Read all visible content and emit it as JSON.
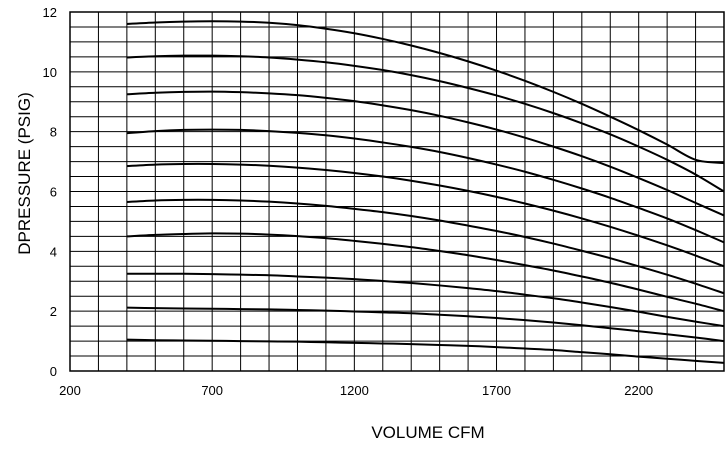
{
  "chart_data": {
    "type": "line",
    "title": "",
    "xlabel": "VOLUME CFM",
    "ylabel": "DPRESSURE (PSIG)",
    "xlim": [
      200,
      2500
    ],
    "ylim": [
      0,
      12
    ],
    "x_ticks": [
      200,
      700,
      1200,
      1700,
      2200
    ],
    "y_ticks": [
      0,
      2,
      4,
      6,
      8,
      10,
      12
    ],
    "x_tick_labels": [
      "200",
      "700",
      "1200",
      "1700",
      "2200"
    ],
    "y_tick_labels": [
      "0",
      "2",
      "4",
      "6",
      "8",
      "10",
      "12"
    ],
    "grid": true,
    "legend": "none",
    "line_color": "#000000",
    "series": [
      {
        "x": [
          400,
          500,
          600,
          700,
          800,
          900,
          1000,
          1100,
          1200,
          1300,
          1400,
          1500,
          1600,
          1700,
          1800,
          1900,
          2000,
          2100,
          2200,
          2300,
          2400,
          2500
        ],
        "values": [
          1.05,
          1.03,
          1.02,
          1.01,
          1.0,
          0.99,
          0.98,
          0.96,
          0.94,
          0.92,
          0.9,
          0.87,
          0.84,
          0.8,
          0.75,
          0.7,
          0.63,
          0.56,
          0.48,
          0.41,
          0.34,
          0.27
        ]
      },
      {
        "x": [
          400,
          500,
          600,
          700,
          800,
          900,
          1000,
          1100,
          1200,
          1300,
          1400,
          1500,
          1600,
          1700,
          1800,
          1900,
          2000,
          2100,
          2200,
          2300,
          2400,
          2500
        ],
        "values": [
          2.12,
          2.1,
          2.09,
          2.08,
          2.07,
          2.06,
          2.04,
          2.02,
          1.99,
          1.96,
          1.93,
          1.88,
          1.83,
          1.77,
          1.7,
          1.62,
          1.53,
          1.43,
          1.33,
          1.23,
          1.12,
          1.0
        ]
      },
      {
        "x": [
          400,
          500,
          600,
          700,
          800,
          900,
          1000,
          1100,
          1200,
          1300,
          1400,
          1500,
          1600,
          1700,
          1800,
          1900,
          2000,
          2100,
          2200,
          2300,
          2400,
          2500
        ],
        "values": [
          3.25,
          3.25,
          3.25,
          3.24,
          3.22,
          3.2,
          3.16,
          3.12,
          3.07,
          3.01,
          2.94,
          2.86,
          2.77,
          2.67,
          2.55,
          2.43,
          2.29,
          2.14,
          1.98,
          1.81,
          1.65,
          1.5
        ]
      },
      {
        "x": [
          400,
          500,
          600,
          700,
          800,
          900,
          1000,
          1100,
          1200,
          1300,
          1400,
          1500,
          1600,
          1700,
          1800,
          1900,
          2000,
          2100,
          2200,
          2300,
          2400,
          2500
        ],
        "values": [
          4.5,
          4.55,
          4.58,
          4.6,
          4.59,
          4.56,
          4.51,
          4.44,
          4.35,
          4.25,
          4.14,
          4.01,
          3.87,
          3.71,
          3.54,
          3.36,
          3.16,
          2.95,
          2.72,
          2.48,
          2.25,
          2.0
        ]
      },
      {
        "x": [
          400,
          500,
          600,
          700,
          800,
          900,
          1000,
          1100,
          1200,
          1300,
          1400,
          1500,
          1600,
          1700,
          1800,
          1900,
          2000,
          2100,
          2200,
          2300,
          2400,
          2500
        ],
        "values": [
          5.65,
          5.7,
          5.72,
          5.72,
          5.7,
          5.66,
          5.6,
          5.52,
          5.42,
          5.31,
          5.18,
          5.03,
          4.86,
          4.68,
          4.48,
          4.26,
          4.02,
          3.77,
          3.5,
          3.22,
          2.92,
          2.6
        ]
      },
      {
        "x": [
          400,
          500,
          600,
          700,
          800,
          900,
          1000,
          1100,
          1200,
          1300,
          1400,
          1500,
          1600,
          1700,
          1800,
          1900,
          2000,
          2100,
          2200,
          2300,
          2400,
          2500
        ],
        "values": [
          6.85,
          6.9,
          6.92,
          6.92,
          6.9,
          6.86,
          6.8,
          6.72,
          6.62,
          6.5,
          6.36,
          6.2,
          6.02,
          5.82,
          5.6,
          5.36,
          5.1,
          4.82,
          4.52,
          4.2,
          3.86,
          3.5
        ]
      },
      {
        "x": [
          400,
          500,
          600,
          700,
          800,
          900,
          1000,
          1100,
          1200,
          1300,
          1400,
          1500,
          1600,
          1700,
          1800,
          1900,
          2000,
          2100,
          2200,
          2300,
          2400,
          2500
        ],
        "values": [
          7.95,
          8.02,
          8.06,
          8.07,
          8.06,
          8.02,
          7.96,
          7.88,
          7.77,
          7.64,
          7.49,
          7.32,
          7.12,
          6.9,
          6.66,
          6.39,
          6.1,
          5.79,
          5.45,
          5.1,
          4.71,
          4.3
        ]
      },
      {
        "x": [
          400,
          500,
          600,
          700,
          800,
          900,
          1000,
          1100,
          1200,
          1300,
          1400,
          1500,
          1600,
          1700,
          1800,
          1900,
          2000,
          2100,
          2200,
          2300,
          2400,
          2500
        ],
        "values": [
          9.25,
          9.3,
          9.33,
          9.34,
          9.32,
          9.28,
          9.22,
          9.13,
          9.02,
          8.88,
          8.72,
          8.53,
          8.31,
          8.07,
          7.8,
          7.5,
          7.18,
          6.83,
          6.45,
          6.05,
          5.62,
          5.2
        ]
      },
      {
        "x": [
          400,
          500,
          600,
          700,
          800,
          900,
          1000,
          1100,
          1200,
          1300,
          1400,
          1500,
          1600,
          1700,
          1800,
          1900,
          2000,
          2100,
          2200,
          2300,
          2400,
          2500
        ],
        "values": [
          10.48,
          10.52,
          10.54,
          10.54,
          10.52,
          10.48,
          10.41,
          10.32,
          10.2,
          10.06,
          9.89,
          9.69,
          9.46,
          9.21,
          8.93,
          8.62,
          8.28,
          7.91,
          7.5,
          7.06,
          6.57,
          6.0
        ]
      },
      {
        "x": [
          400,
          500,
          600,
          700,
          800,
          900,
          1000,
          1100,
          1200,
          1300,
          1400,
          1500,
          1600,
          1700,
          1800,
          1900,
          2000,
          2100,
          2200,
          2300,
          2400,
          2500
        ],
        "values": [
          11.6,
          11.65,
          11.68,
          11.69,
          11.68,
          11.64,
          11.56,
          11.44,
          11.29,
          11.1,
          10.88,
          10.63,
          10.35,
          10.04,
          9.7,
          9.33,
          8.93,
          8.5,
          8.05,
          7.57,
          7.06,
          6.95
        ]
      }
    ]
  }
}
